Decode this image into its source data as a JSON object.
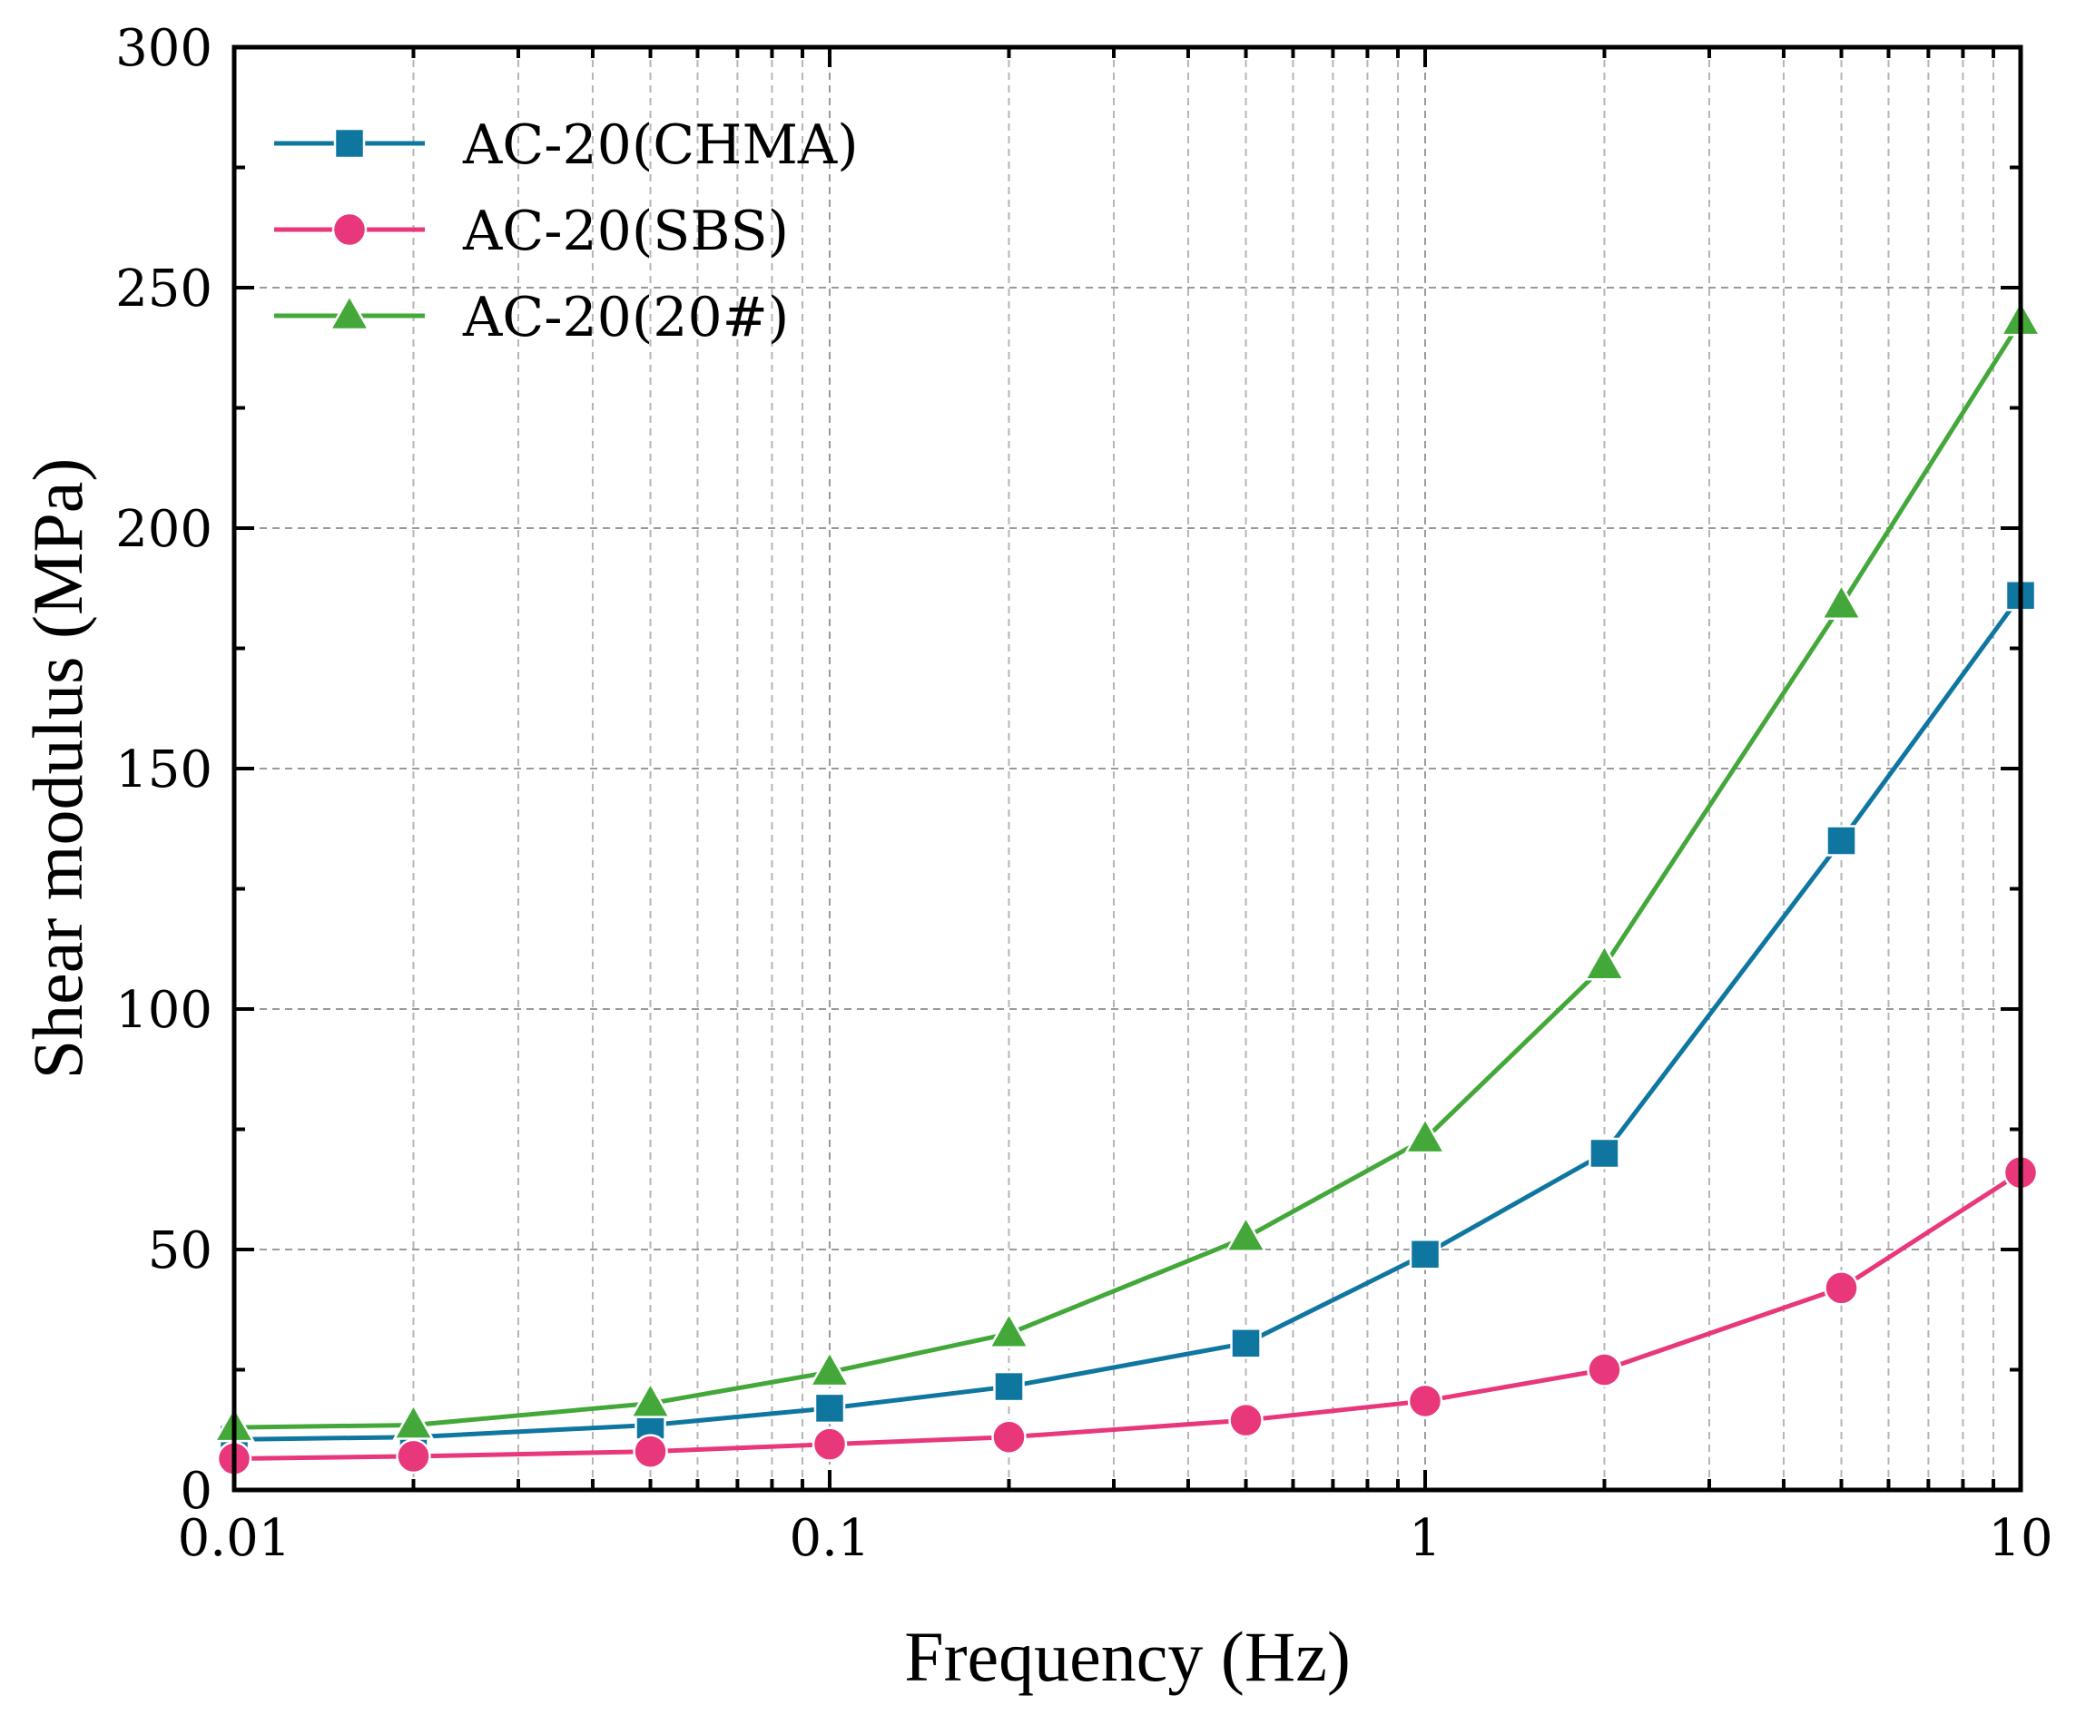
{
  "chart_data": {
    "type": "line",
    "xscale": "log",
    "xlabel": "Frequency (Hz)",
    "ylabel": "Shear modulus (MPa)",
    "xlim": [
      0.01,
      10
    ],
    "ylim": [
      0,
      300
    ],
    "xticks": [
      0.01,
      0.1,
      1,
      10
    ],
    "xtick_labels": [
      "0.01",
      "0.1",
      "1",
      "10"
    ],
    "yticks": [
      0,
      50,
      100,
      150,
      200,
      250,
      300
    ],
    "ytick_labels": [
      "0",
      "50",
      "100",
      "150",
      "200",
      "250",
      "300"
    ],
    "grid": true,
    "legend_position": "top-left",
    "x": [
      0.01,
      0.02,
      0.05,
      0.1,
      0.2,
      0.5,
      1,
      2,
      5,
      10
    ],
    "series": [
      {
        "name": "AC-20(CHMA)",
        "color": "#0f76a0",
        "marker": "square",
        "values": [
          10.5,
          11,
          13.5,
          17,
          21.5,
          30.5,
          49,
          70,
          135,
          186
        ]
      },
      {
        "name": "AC-20(SBS)",
        "color": "#e8377a",
        "marker": "circle",
        "values": [
          6.5,
          7,
          8,
          9.5,
          11,
          14.5,
          18.5,
          25,
          42,
          66
        ]
      },
      {
        "name": "AC-20(20#)",
        "color": "#43a839",
        "marker": "triangle",
        "values": [
          13,
          13.5,
          18,
          24.5,
          32.5,
          52.5,
          73,
          109,
          184,
          243
        ]
      }
    ]
  }
}
